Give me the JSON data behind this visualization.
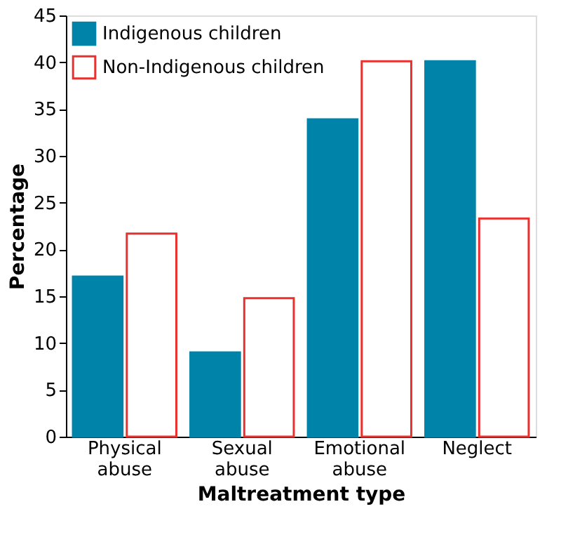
{
  "chart_data": {
    "type": "bar",
    "xlabel": "Maltreatment type",
    "ylabel": "Percentage",
    "categories": [
      "Physical abuse",
      "Sexual abuse",
      "Emotional abuse",
      "Neglect"
    ],
    "series": [
      {
        "name": "Indigenous children",
        "color": "#0083a9",
        "values": [
          17.1,
          9,
          33.9,
          40.1
        ]
      },
      {
        "name": "Non-Indigenous children",
        "color": "#e8312f",
        "values": [
          21.7,
          14.8,
          40.1,
          23.3
        ]
      }
    ],
    "ylim": [
      0,
      45
    ],
    "yticks": [
      0,
      5,
      10,
      15,
      20,
      25,
      30,
      35,
      40,
      45
    ],
    "grid": false,
    "legend": "top left"
  }
}
